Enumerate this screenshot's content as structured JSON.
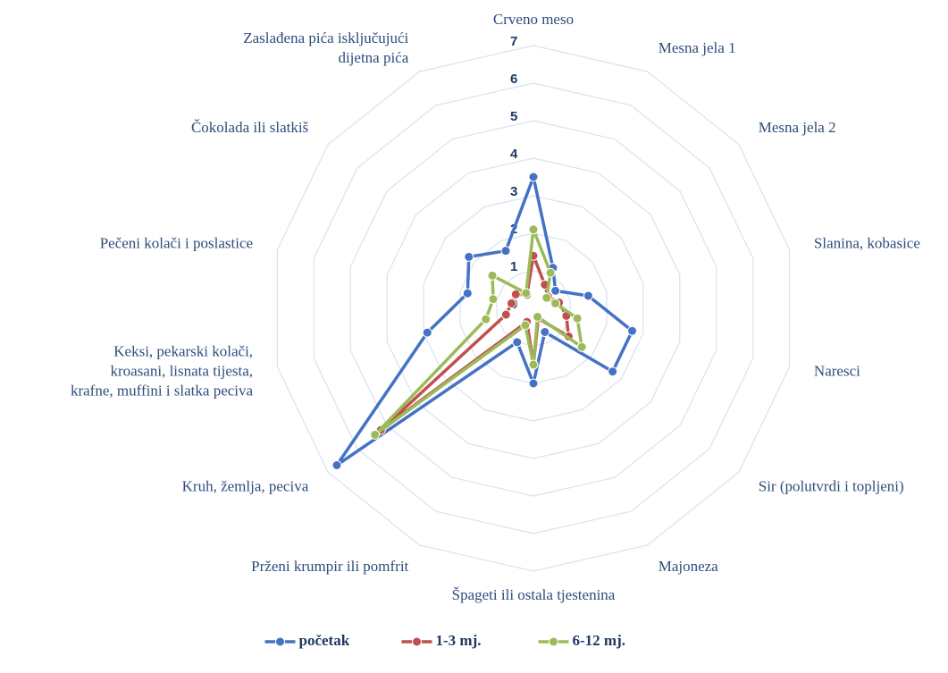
{
  "chart_data": {
    "type": "radar",
    "categories": [
      "Crveno meso",
      "Mesna jela 1",
      "Mesna jela 2",
      "Slanina, kobasice",
      "Naresci",
      "Sir (polutvrdi i topljeni)",
      "Majoneza",
      "Špageti ili ostala tjestenina",
      "Prženi krumpir ili pomfrit",
      "Kruh, žemlja, peciva",
      "Keksi, pekarski kolači, kroasani, lisnata tijesta, krafne, muffini i slatka peciva",
      "Pečeni kolači i poslastice",
      "Čokolada ili slatkiš",
      "Zaslađena pića isključujući dijetna pića"
    ],
    "series": [
      {
        "name": "početak",
        "color": "#4472c4",
        "values": [
          3.5,
          1.2,
          0.75,
          1.5,
          2.7,
          2.7,
          0.7,
          2.0,
          1.0,
          6.7,
          2.9,
          1.8,
          2.2,
          1.7
        ]
      },
      {
        "name": "1-3 mj.",
        "color": "#c0504d",
        "values": [
          1.4,
          0.7,
          0.5,
          0.7,
          0.9,
          1.2,
          0.3,
          1.5,
          0.4,
          5.2,
          0.75,
          0.6,
          0.6,
          0.4
        ]
      },
      {
        "name": "6-12 mj.",
        "color": "#9bbb59",
        "values": [
          2.1,
          1.05,
          0.45,
          0.6,
          1.2,
          1.65,
          0.25,
          1.5,
          0.5,
          5.4,
          1.3,
          1.1,
          1.4,
          0.45
        ]
      }
    ],
    "rlim": [
      0,
      7
    ],
    "rticks": [
      0,
      1,
      2,
      3,
      4,
      5,
      6,
      7
    ],
    "grid": true,
    "legend": "bottom"
  }
}
